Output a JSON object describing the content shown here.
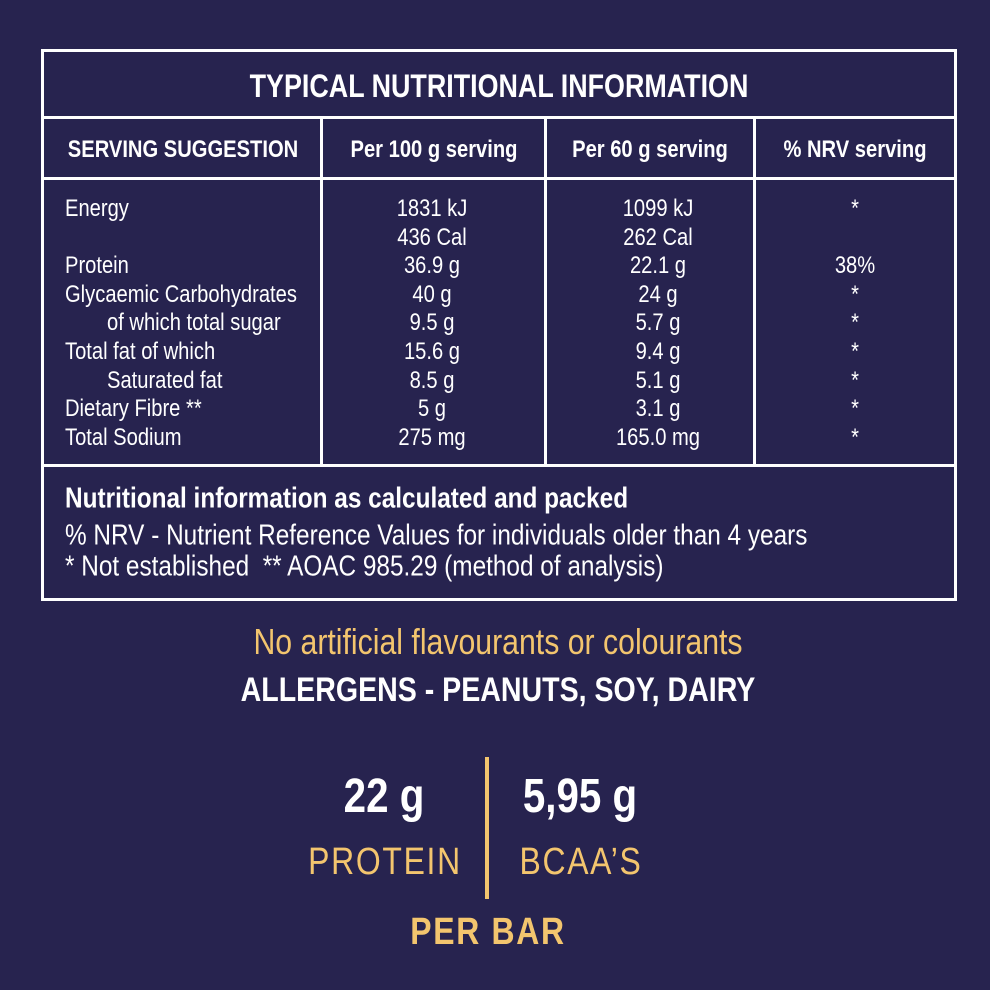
{
  "header": {
    "title": "TYPICAL NUTRITIONAL INFORMATION"
  },
  "table": {
    "columns": [
      "SERVING SUGGESTION",
      "Per 100 g serving",
      "Per 60 g serving",
      "% NRV serving"
    ],
    "rows": [
      {
        "label": "Energy",
        "per_100g": [
          "1831 kJ",
          "436 Cal"
        ],
        "per_60g": [
          "1099 kJ",
          "262 Cal"
        ],
        "nrv": "*"
      },
      {
        "label": "Protein",
        "per_100g": [
          "36.9 g"
        ],
        "per_60g": [
          "22.1 g"
        ],
        "nrv": "38%"
      },
      {
        "label": "Glycaemic Carbohydrates",
        "per_100g": [
          "40 g"
        ],
        "per_60g": [
          "24 g"
        ],
        "nrv": "*"
      },
      {
        "label": "of which total sugar",
        "indent": true,
        "per_100g": [
          "9.5 g"
        ],
        "per_60g": [
          "5.7 g"
        ],
        "nrv": "*"
      },
      {
        "label": "Total fat of which",
        "per_100g": [
          "15.6 g"
        ],
        "per_60g": [
          "9.4 g"
        ],
        "nrv": "*"
      },
      {
        "label": "Saturated fat",
        "indent": true,
        "per_100g": [
          "8.5 g"
        ],
        "per_60g": [
          "5.1 g"
        ],
        "nrv": "*"
      },
      {
        "label": "Dietary Fibre **",
        "per_100g": [
          "5 g"
        ],
        "per_60g": [
          "3.1 g"
        ],
        "nrv": "*"
      },
      {
        "label": "Total Sodium",
        "per_100g": [
          "275 mg"
        ],
        "per_60g": [
          "165.0 mg"
        ],
        "nrv": "*"
      }
    ],
    "footnotes": {
      "heading": "Nutritional information as calculated and packed",
      "lines": [
        "% NRV - Nutrient Reference Values for individuals older than 4 years",
        "* Not established  ** AOAC 985.29 (method of analysis)"
      ]
    }
  },
  "claims": {
    "note": "No artificial flavourants or colourants",
    "allergens": "ALLERGENS - PEANUTS, SOY, DAIRY"
  },
  "highlights": {
    "items": [
      {
        "amount": "22 g",
        "label": "PROTEIN"
      },
      {
        "amount": "5,95 g",
        "label": "BCAA’S"
      }
    ],
    "footer": "PER BAR"
  }
}
